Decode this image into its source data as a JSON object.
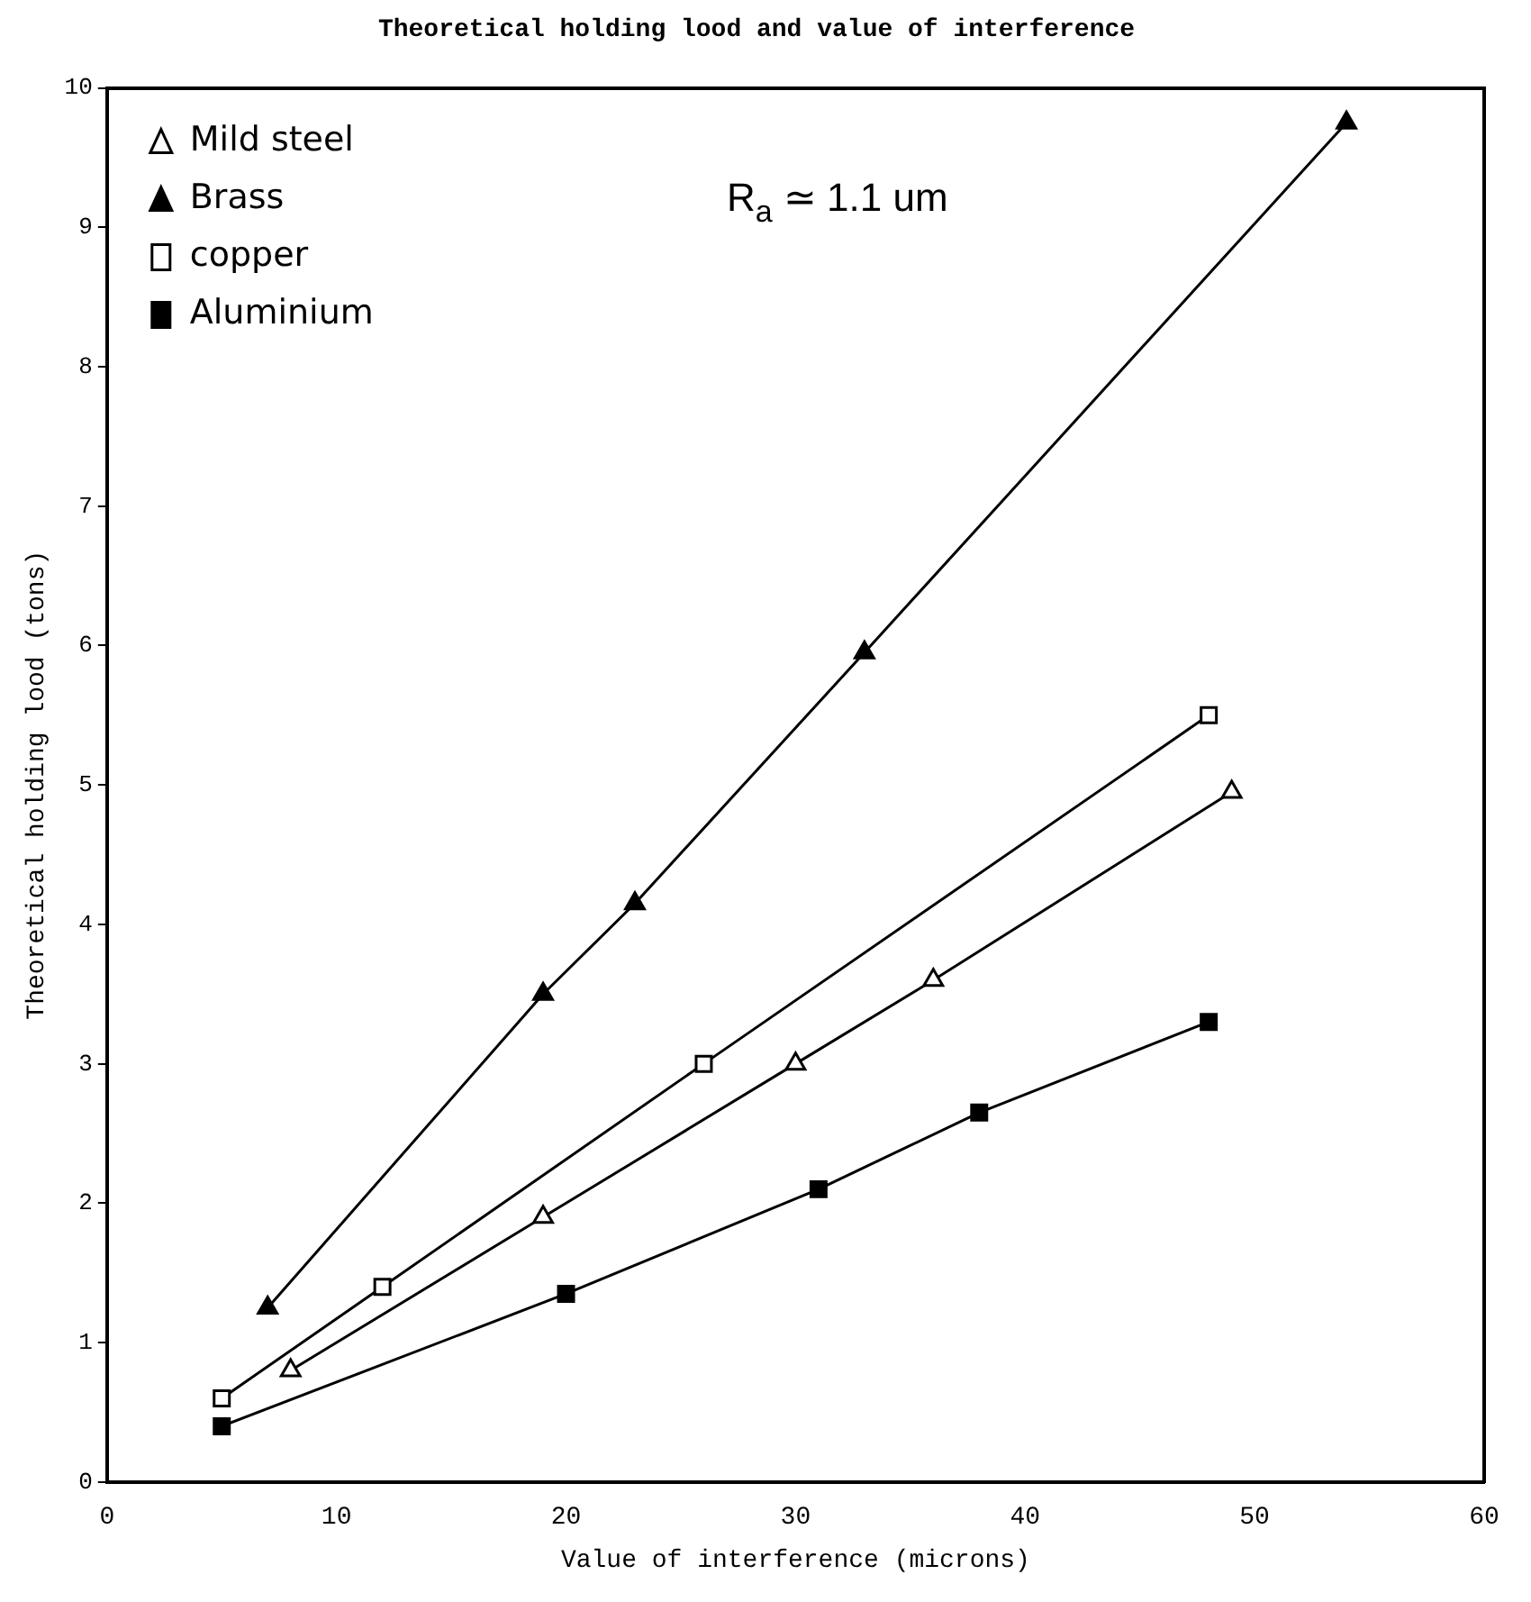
{
  "chart_data": {
    "type": "line",
    "title": "Theoretical holding lood and value of interference",
    "xlabel": "Value of interference (microns)",
    "ylabel": "Theoretical holding lood (tons)",
    "annotations": [
      "R$_{a}$ ≃ 1.1 um"
    ],
    "xlim": [
      0,
      60
    ],
    "xticks": [
      0,
      10,
      20,
      30,
      40,
      50,
      60
    ],
    "ylim": [
      0,
      10
    ],
    "yticks": [
      0,
      1,
      2,
      3,
      4,
      5,
      6,
      7,
      8,
      9,
      10
    ],
    "grid": false,
    "legend": "top left",
    "series": [
      {
        "name": "Mild steel",
        "color": "#000000",
        "marker": "triangle",
        "x": [
          8,
          19,
          30,
          36,
          49
        ],
        "values": [
          0.8,
          1.9,
          3.0,
          3.6,
          4.95
        ]
      },
      {
        "name": "Brass",
        "color": "#000000",
        "marker": "triangle",
        "x": [
          7,
          19,
          23,
          33,
          54
        ],
        "values": [
          1.25,
          3.5,
          4.15,
          5.95,
          9.75
        ]
      },
      {
        "name": "copper",
        "color": "#000000",
        "marker": "square",
        "x": [
          5,
          12,
          26,
          48
        ],
        "values": [
          0.6,
          1.4,
          3.0,
          5.5
        ]
      },
      {
        "name": "Aluminium",
        "color": "#000000",
        "marker": "square",
        "x": [
          5,
          20,
          31,
          38,
          48
        ],
        "values": [
          0.4,
          1.35,
          2.1,
          2.65,
          3.3
        ]
      }
    ]
  }
}
